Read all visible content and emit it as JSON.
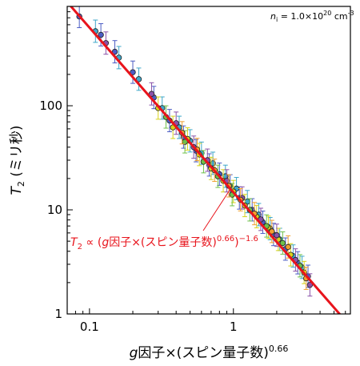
{
  "chart_data": {
    "type": "scatter",
    "log_x": true,
    "log_y": true,
    "xlim": [
      0.07,
      6.5
    ],
    "ylim": [
      1,
      900
    ],
    "x_ticks": [
      0.1,
      1
    ],
    "x_tick_labels": [
      "0.1",
      "1"
    ],
    "y_ticks": [
      1,
      10,
      100
    ],
    "y_tick_labels": [
      "1",
      "10",
      "100"
    ],
    "xlabel": {
      "main": "g因子×(スピン量子数)",
      "sup": "0.66"
    },
    "ylabel": {
      "main": "T",
      "sub": "2",
      "rest": " (ミリ秒)"
    },
    "annotation": {
      "lhs": "n",
      "lhs_sub": "i",
      "eq": " = 1.0×10",
      "exp": "20",
      "unit": " cm",
      "unit_exp": "-3"
    },
    "fit": {
      "label": {
        "T": "T",
        "sub": "2",
        "mid": " ∝ (",
        "g": "g",
        "body": "因子×(スピン量子数)",
        "exp1": "0.66",
        "close": ")",
        "exp2": "−1.6"
      },
      "exponent": -1.6,
      "x": [
        0.07,
        6.5
      ],
      "y": [
        990,
        0.76
      ],
      "color": "#e8141c"
    },
    "series": [
      {
        "color": "#4b5cc4",
        "x": [
          0.085,
          0.12,
          0.15,
          0.2,
          0.28,
          0.36,
          0.45,
          0.55,
          0.68,
          0.8,
          0.95,
          1.1,
          1.35,
          1.6,
          1.9,
          2.3,
          2.8,
          3.3
        ],
        "y": [
          720,
          480,
          330,
          210,
          120,
          72,
          50,
          37,
          27,
          22,
          17,
          13,
          10,
          7.6,
          5.8,
          4.2,
          3.1,
          2.3
        ]
      },
      {
        "color": "#3fa7c9",
        "x": [
          0.11,
          0.16,
          0.22,
          0.32,
          0.42,
          0.5,
          0.6,
          0.72,
          0.88,
          1.05,
          1.25,
          1.5,
          1.8,
          2.1,
          2.6,
          3.0
        ],
        "y": [
          520,
          290,
          180,
          95,
          62,
          46,
          35,
          28,
          21,
          16,
          12,
          9,
          6.6,
          5.2,
          3.6,
          2.8
        ]
      },
      {
        "color": "#d8d41c",
        "x": [
          0.3,
          0.38,
          0.48,
          0.58,
          0.7,
          0.85,
          1.0,
          1.2,
          1.45,
          1.75,
          2.05,
          2.5,
          3.1
        ],
        "y": [
          95,
          62,
          48,
          34,
          25,
          19,
          15,
          11,
          8.6,
          6.8,
          5.2,
          3.7,
          2.5
        ]
      },
      {
        "color": "#6fc04a",
        "x": [
          0.34,
          0.46,
          0.62,
          0.78,
          0.98,
          1.3,
          1.7,
          2.2,
          2.9
        ],
        "y": [
          78,
          45,
          29,
          21,
          14,
          10,
          7,
          4.8,
          2.9
        ]
      },
      {
        "color": "#8a52a8",
        "x": [
          0.13,
          0.27,
          0.4,
          0.53,
          0.66,
          0.9,
          1.15,
          1.55,
          2.0,
          2.7,
          3.4
        ],
        "y": [
          400,
          130,
          68,
          40,
          30,
          19,
          13,
          8.1,
          5.7,
          3.3,
          1.9
        ]
      },
      {
        "color": "#f0a030",
        "x": [
          0.44,
          0.56,
          0.74,
          0.93,
          1.12,
          1.4,
          1.85,
          2.4,
          3.2
        ],
        "y": [
          55,
          38,
          24,
          17,
          12.5,
          9.2,
          6.2,
          4.4,
          2.2
        ]
      }
    ]
  }
}
